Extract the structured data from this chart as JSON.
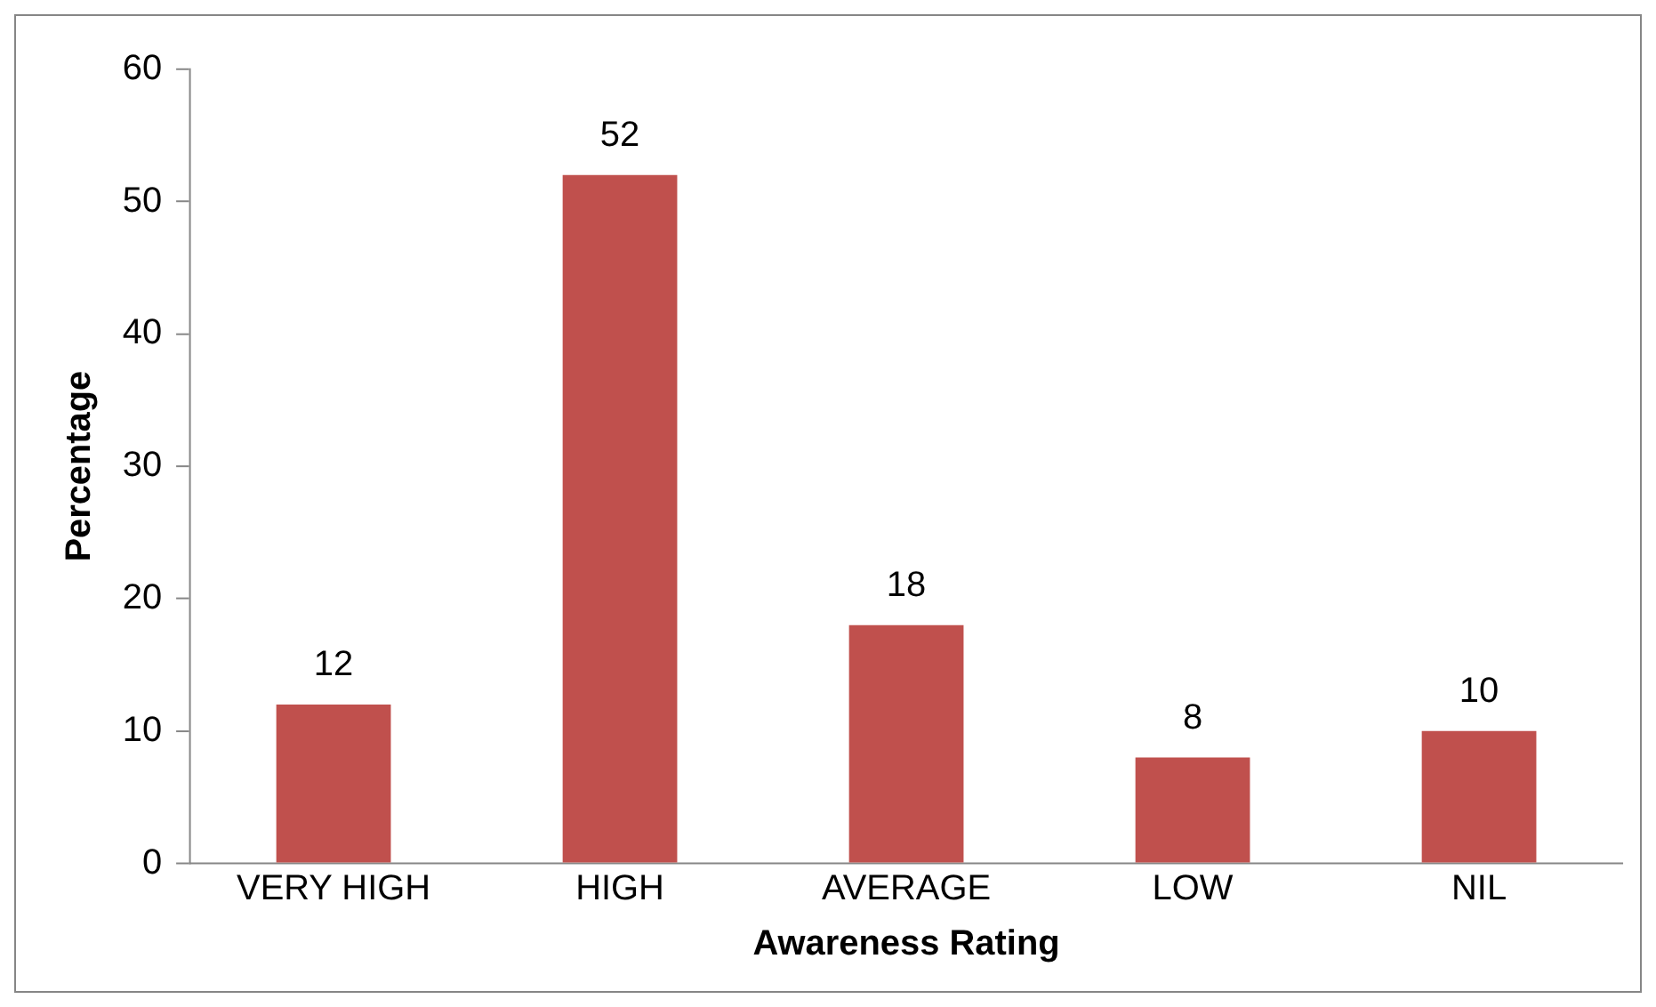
{
  "chart_data": {
    "type": "bar",
    "xlabel": "Awareness Rating",
    "ylabel": "Percentage",
    "categories": [
      "VERY HIGH",
      "HIGH",
      "AVERAGE",
      "LOW",
      "NIL"
    ],
    "values": [
      12,
      52,
      18,
      8,
      10
    ],
    "color": "#c0504d",
    "ylim": [
      0,
      60
    ],
    "yticks": [
      0,
      10,
      20,
      30,
      40,
      50,
      60
    ],
    "grid": false,
    "legend": false,
    "data_labels": true
  }
}
